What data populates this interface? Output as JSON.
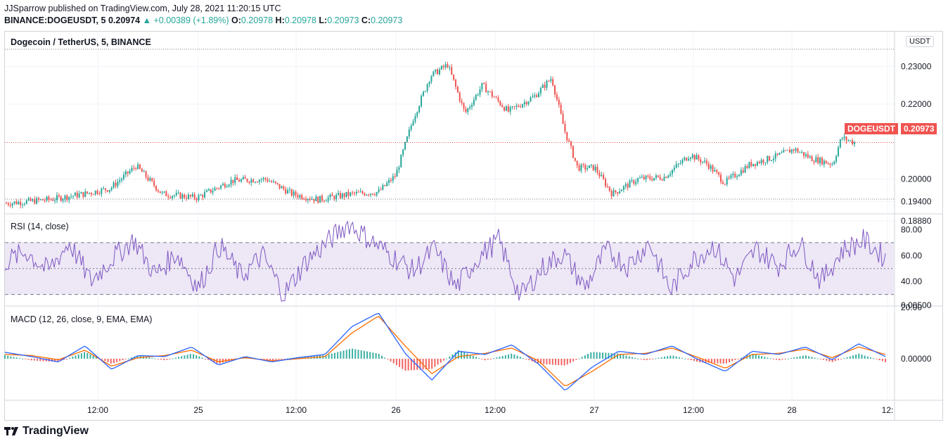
{
  "header": {
    "publisher_line": "JJSparrow published on TradingView.com, July 28, 2021 11:20:15 UTC",
    "symbol": "BINANCE:DOGEUSDT, 5",
    "last": "0.20974",
    "change": "▲ +0.00389 (+1.89%)",
    "o_label": "O:",
    "o_value": "0.20978",
    "h_label": "H:",
    "h_value": "0.20978",
    "l_label": "L:",
    "l_value": "0.20973",
    "c_label": "C:",
    "c_value": "0.20973"
  },
  "main_pane": {
    "title": "Dogecoin / TetherUS, 5, BINANCE",
    "currency_button": "USDT",
    "price_tag_symbol": "DOGEUSDT",
    "price_tag_value": "0.20973"
  },
  "rsi_pane": {
    "title": "RSI (14, close)"
  },
  "macd_pane": {
    "title": "MACD (12, 26, close, 9, EMA, EMA)"
  },
  "footer": {
    "brand": "TradingView"
  },
  "colors": {
    "up": "#26a69a",
    "down": "#ef5350",
    "rsi_line": "#7e57c2",
    "rsi_band": "#ede7f6",
    "macd_line": "#2962ff",
    "signal_line": "#ff6d00",
    "price_line": "#f05350",
    "grid": "#f0f3fa"
  },
  "chart_data": [
    {
      "type": "candlestick",
      "title": "Dogecoin / TetherUS, 5, BINANCE",
      "x_tick_labels": [
        "12:00",
        "25",
        "12:00",
        "26",
        "12:00",
        "27",
        "12:00",
        "28",
        "12:"
      ],
      "y_tick_labels": [
        "0.23000",
        "0.22000",
        "0.20000",
        "0.19400",
        "0.18880"
      ],
      "ylim": [
        0.1888,
        0.2335
      ],
      "last_price": 0.20973,
      "close_path": [
        [
          0,
          0.1935
        ],
        [
          0.05,
          0.1945
        ],
        [
          0.09,
          0.196
        ],
        [
          0.12,
          0.1975
        ],
        [
          0.15,
          0.2035
        ],
        [
          0.18,
          0.196
        ],
        [
          0.22,
          0.195
        ],
        [
          0.26,
          0.1995
        ],
        [
          0.3,
          0.2
        ],
        [
          0.33,
          0.196
        ],
        [
          0.36,
          0.1945
        ],
        [
          0.4,
          0.196
        ],
        [
          0.43,
          0.1965
        ],
        [
          0.45,
          0.201
        ],
        [
          0.47,
          0.216
        ],
        [
          0.49,
          0.2275
        ],
        [
          0.51,
          0.2305
        ],
        [
          0.53,
          0.2175
        ],
        [
          0.55,
          0.225
        ],
        [
          0.58,
          0.218
        ],
        [
          0.61,
          0.222
        ],
        [
          0.63,
          0.227
        ],
        [
          0.645,
          0.213
        ],
        [
          0.66,
          0.203
        ],
        [
          0.68,
          0.203
        ],
        [
          0.7,
          0.196
        ],
        [
          0.73,
          0.2
        ],
        [
          0.76,
          0.2005
        ],
        [
          0.79,
          0.2065
        ],
        [
          0.81,
          0.204
        ],
        [
          0.83,
          0.199
        ],
        [
          0.86,
          0.204
        ],
        [
          0.89,
          0.206
        ],
        [
          0.91,
          0.208
        ],
        [
          0.93,
          0.2055
        ],
        [
          0.955,
          0.204
        ],
        [
          0.965,
          0.211
        ],
        [
          0.98,
          0.2097
        ]
      ]
    },
    {
      "type": "line",
      "title": "RSI (14, close)",
      "y_tick_labels": [
        "80.00",
        "60.00",
        "40.00",
        "20.00"
      ],
      "ylim": [
        20,
        90
      ],
      "bands": [
        70,
        50,
        30
      ],
      "series": [
        {
          "values": [
            55,
            63,
            48,
            70,
            40,
            58,
            72,
            45,
            62,
            35,
            68,
            44,
            60,
            30,
            55,
            70,
            85,
            72,
            60,
            48,
            65,
            35,
            58,
            72,
            28,
            50,
            62,
            35,
            64,
            52,
            70,
            33,
            56,
            68,
            42,
            65,
            52,
            70,
            40,
            64,
            72,
            58
          ]
        }
      ]
    },
    {
      "type": "line",
      "title": "MACD (12, 26, close, 9, EMA, EMA)",
      "y_tick_labels": [
        "0.00500",
        "0.00000"
      ],
      "ylim": [
        -0.0035,
        0.0052
      ],
      "series": [
        {
          "values": [
            0.0006,
            0.0002,
            -0.0003,
            0.0012,
            -0.001,
            0.0003,
            0.0002,
            0.0011,
            -0.0006,
            0.0002,
            -0.0003,
            0.0001,
            0.0004,
            0.003,
            0.0043,
            0.0005,
            -0.002,
            0.0007,
            0.0004,
            0.0013,
            -0.0005,
            -0.003,
            -0.0008,
            0.0007,
            0.0004,
            0.0012,
            -0.0001,
            -0.0012,
            0.0007,
            0.0004,
            0.0011,
            -0.0001,
            0.0014,
            0.0002
          ]
        },
        {
          "values": [
            0.0004,
            0.0003,
            -0.0001,
            0.0008,
            -0.0007,
            0.0001,
            0.0003,
            0.0008,
            -0.0003,
            0.0001,
            -0.0002,
            0.0,
            0.0002,
            0.0024,
            0.004,
            0.0012,
            -0.0014,
            0.0002,
            0.0005,
            0.001,
            -0.0002,
            -0.0026,
            -0.0012,
            0.0004,
            0.0005,
            0.001,
            0.0001,
            -0.0009,
            0.0004,
            0.0005,
            0.0009,
            0.0001,
            0.0011,
            0.0004
          ]
        }
      ]
    }
  ]
}
